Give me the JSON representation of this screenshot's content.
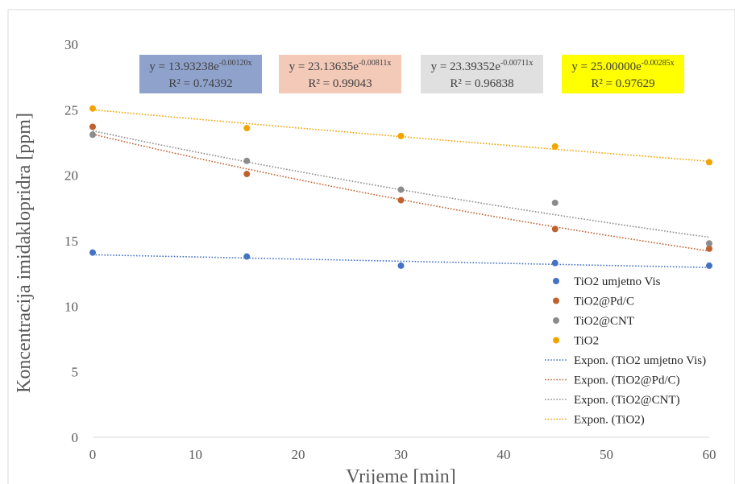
{
  "chart_data": {
    "type": "scatter",
    "xlabel": "Vrijeme [min]",
    "ylabel": "Koncentracija imidaklopridra [ppm]",
    "xlim": [
      0,
      60
    ],
    "ylim": [
      0,
      30
    ],
    "xticks": [
      0,
      10,
      20,
      30,
      40,
      50,
      60
    ],
    "yticks": [
      0,
      5,
      10,
      15,
      20,
      25,
      30
    ],
    "grid": false,
    "legend_position": "right",
    "series": [
      {
        "name": "TiO2 umjetno Vis",
        "color": "#4472C4",
        "x": [
          0,
          15,
          30,
          45,
          60
        ],
        "y": [
          14.1,
          13.8,
          13.1,
          13.3,
          13.1
        ],
        "trendline": {
          "name": "Expon. (TiO2 umjetno Vis)",
          "a": 13.93238,
          "b": -0.0012,
          "equation": "y = 13.93238e",
          "exponent": "-0.00120x",
          "r2": "R² = 0.74392",
          "box_color": "#8FA2CC"
        }
      },
      {
        "name": "TiO2@Pd/C",
        "color": "#C0622F",
        "x": [
          0,
          15,
          30,
          45,
          60
        ],
        "y": [
          23.7,
          20.1,
          18.1,
          15.9,
          14.4
        ],
        "trendline": {
          "name": "Expon. (TiO2@Pd/C)",
          "a": 23.13635,
          "b": -0.00811,
          "equation": "y = 23.13635e",
          "exponent": "-0.00811x",
          "r2": "R² = 0.99043",
          "box_color": "#F3C9B7"
        }
      },
      {
        "name": "TiO2@CNT",
        "color": "#8C8C8C",
        "x": [
          0,
          15,
          30,
          45,
          60
        ],
        "y": [
          23.1,
          21.1,
          18.9,
          17.9,
          14.8
        ],
        "trendline": {
          "name": "Expon. (TiO2@CNT)",
          "a": 23.39352,
          "b": -0.00711,
          "equation": "y = 23.39352e",
          "exponent": "-0.00711x",
          "r2": "R² = 0.96838",
          "box_color": "#E0E0E0"
        }
      },
      {
        "name": "TiO2",
        "color": "#F2A300",
        "x": [
          0,
          15,
          30,
          45,
          60
        ],
        "y": [
          25.1,
          23.6,
          23.0,
          22.2,
          21.0
        ],
        "trendline": {
          "name": "Expon. (TiO2)",
          "a": 25.0,
          "b": -0.00285,
          "equation": "y = 25.00000e",
          "exponent": "-0.00285x",
          "r2": "R² = 0.97629",
          "box_color": "#FFFF00"
        }
      }
    ]
  }
}
